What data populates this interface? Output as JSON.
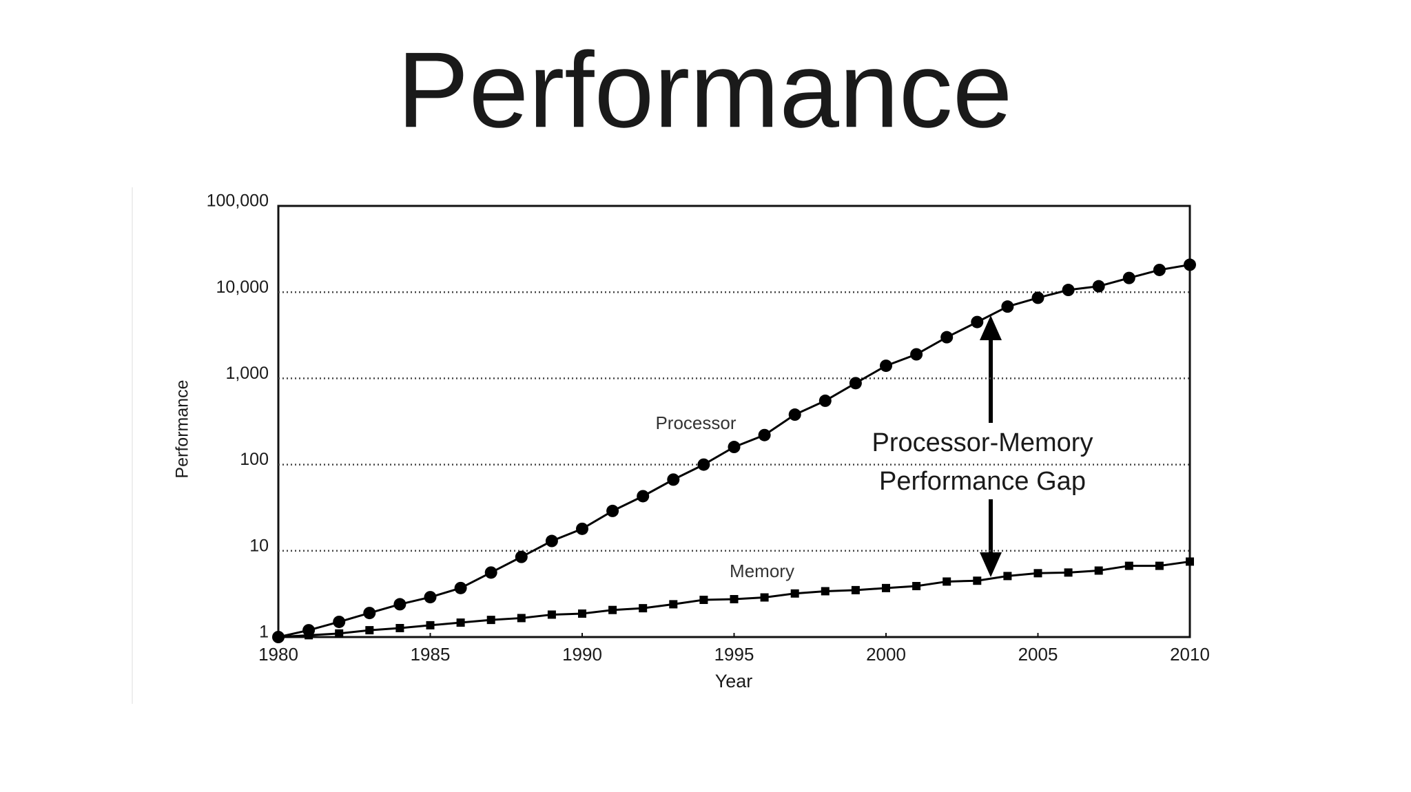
{
  "chart_data": {
    "type": "line",
    "title": "Performance",
    "x_label": "Year",
    "y_label": "Performance",
    "log_scale": true,
    "grid": true,
    "x": [
      1980,
      1981,
      1982,
      1983,
      1984,
      1985,
      1986,
      1987,
      1988,
      1989,
      1990,
      1991,
      1992,
      1993,
      1994,
      1995,
      1996,
      1997,
      1998,
      1999,
      2000,
      2001,
      2002,
      2003,
      2004,
      2005,
      2006,
      2007,
      2008,
      2009,
      2010
    ],
    "series": [
      {
        "name": "Processor",
        "color": "#000000",
        "marker": "circle",
        "values": [
          1,
          1.2,
          1.5,
          1.9,
          2.4,
          2.9,
          3.7,
          5.6,
          8.5,
          13,
          18,
          29,
          43,
          67,
          100,
          160,
          220,
          380,
          550,
          880,
          1400,
          1900,
          3000,
          4500,
          6800,
          8600,
          10600,
          11700,
          14600,
          18100,
          20800
        ]
      },
      {
        "name": "Memory",
        "color": "#000000",
        "marker": "square",
        "values": [
          1,
          1.05,
          1.1,
          1.2,
          1.27,
          1.37,
          1.47,
          1.58,
          1.66,
          1.82,
          1.87,
          2.06,
          2.16,
          2.4,
          2.7,
          2.75,
          2.88,
          3.2,
          3.4,
          3.5,
          3.7,
          3.9,
          4.4,
          4.5,
          5.1,
          5.5,
          5.6,
          5.9,
          6.7,
          6.7,
          7.5
        ]
      }
    ],
    "xlim": [
      1980,
      2010
    ],
    "xticks": [
      1980,
      1985,
      1990,
      1995,
      2000,
      2005,
      2010
    ],
    "ylim": [
      1,
      100000
    ],
    "yticks": [
      1,
      10,
      100,
      {
        "value": 1000,
        "label": "1,000"
      },
      {
        "value": 10000,
        "label": "10,000"
      },
      {
        "value": 100000,
        "label": "100,000"
      }
    ],
    "annotations": [
      "Processor-Memory",
      "Performance Gap"
    ]
  }
}
